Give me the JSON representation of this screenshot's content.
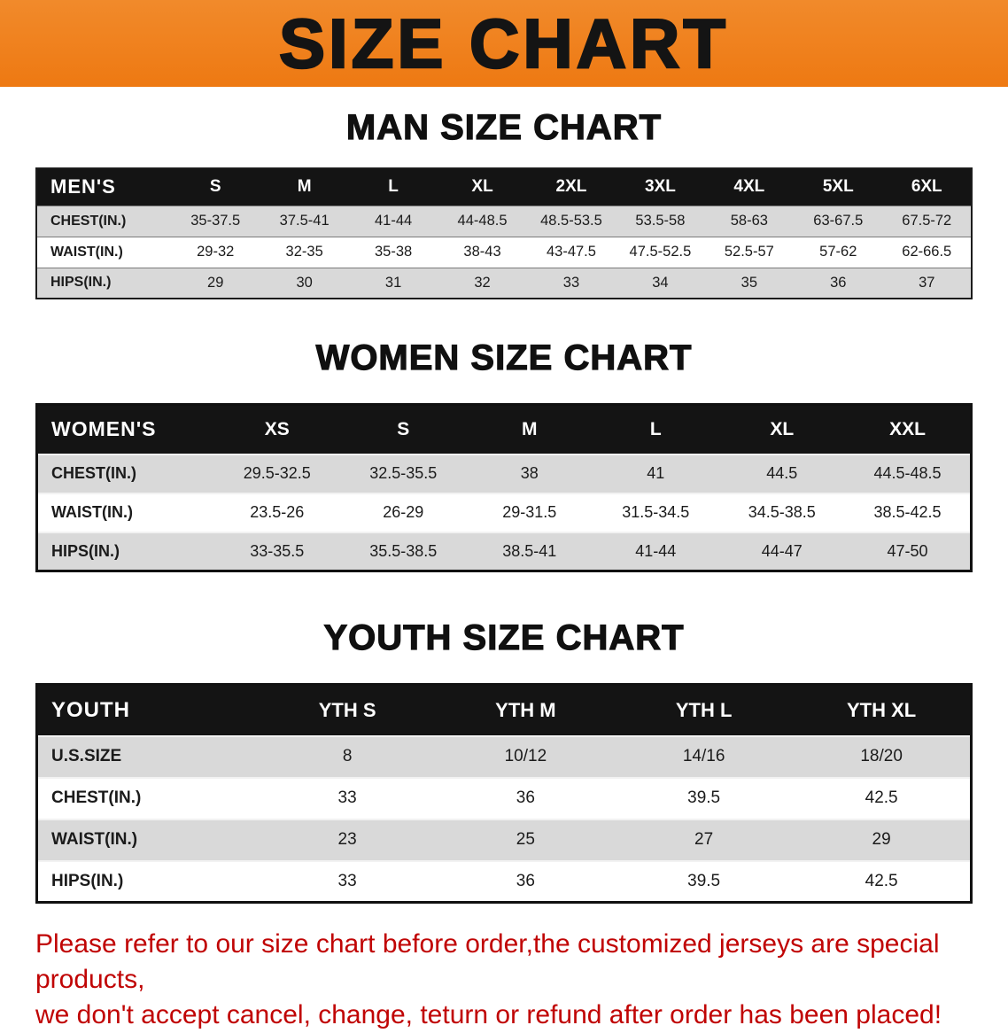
{
  "banner": {
    "title": "SIZE CHART",
    "bg_color": "#EE7912",
    "text_color": "#141414"
  },
  "sections": [
    {
      "heading": "MAN SIZE CHART",
      "table": {
        "header": [
          "MEN'S",
          "S",
          "M",
          "L",
          "XL",
          "2XL",
          "3XL",
          "4XL",
          "5XL",
          "6XL"
        ],
        "rows": [
          [
            "CHEST(IN.)",
            "35-37.5",
            "37.5-41",
            "41-44",
            "44-48.5",
            "48.5-53.5",
            "53.5-58",
            "58-63",
            "63-67.5",
            "67.5-72"
          ],
          [
            "WAIST(IN.)",
            "29-32",
            "32-35",
            "35-38",
            "38-43",
            "43-47.5",
            "47.5-52.5",
            "52.5-57",
            "57-62",
            "62-66.5"
          ],
          [
            "HIPS(IN.)",
            "29",
            "30",
            "31",
            "32",
            "33",
            "34",
            "35",
            "36",
            "37"
          ]
        ]
      }
    },
    {
      "heading": "WOMEN SIZE CHART",
      "table": {
        "header": [
          "WOMEN'S",
          "XS",
          "S",
          "M",
          "L",
          "XL",
          "XXL"
        ],
        "rows": [
          [
            "CHEST(IN.)",
            "29.5-32.5",
            "32.5-35.5",
            "38",
            "41",
            "44.5",
            "44.5-48.5"
          ],
          [
            "WAIST(IN.)",
            "23.5-26",
            "26-29",
            "29-31.5",
            "31.5-34.5",
            "34.5-38.5",
            "38.5-42.5"
          ],
          [
            "HIPS(IN.)",
            "33-35.5",
            "35.5-38.5",
            "38.5-41",
            "41-44",
            "44-47",
            "47-50"
          ]
        ]
      }
    },
    {
      "heading": "YOUTH SIZE CHART",
      "table": {
        "header": [
          "YOUTH",
          "YTH S",
          "YTH M",
          "YTH L",
          "YTH XL"
        ],
        "rows": [
          [
            "U.S.SIZE",
            "8",
            "10/12",
            "14/16",
            "18/20"
          ],
          [
            "CHEST(IN.)",
            "33",
            "36",
            "39.5",
            "42.5"
          ],
          [
            "WAIST(IN.)",
            "23",
            "25",
            "27",
            "29"
          ],
          [
            "HIPS(IN.)",
            "33",
            "36",
            "39.5",
            "42.5"
          ]
        ]
      }
    }
  ],
  "footer": {
    "line1": "Please refer to our size chart before order,the customized jerseys are special products,",
    "line2": "we don't accept cancel, change, teturn or refund after order has been placed!",
    "text_color": "#C00404"
  }
}
